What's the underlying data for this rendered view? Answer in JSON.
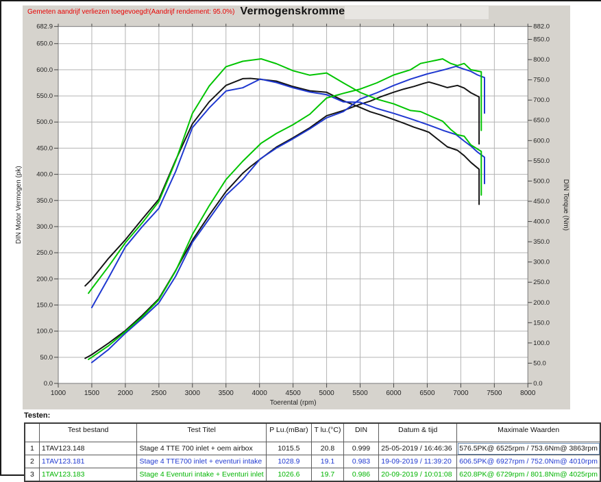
{
  "page": {
    "annotation": "Gemeten aandrijf verliezen toegevoegd!(Aandrijf rendement: 95.0%)",
    "title": "Vermogenskromme",
    "testen_label": "Testen:"
  },
  "chart_data": {
    "type": "line",
    "title": "Vermogenskromme",
    "xlabel": "Toerental (rpm)",
    "ylabel_left": "DIN Motor Vermogen (pk)",
    "ylabel_right": "DIN Torque (Nm)",
    "grid": true,
    "x_range": [
      1000,
      8000
    ],
    "x_ticks": [
      1000,
      1500,
      2000,
      2500,
      3000,
      3500,
      4000,
      4500,
      5000,
      5500,
      6000,
      6500,
      7000,
      7500,
      8000
    ],
    "y_left_range": [
      0,
      682.9
    ],
    "y_left_ticks": [
      682.9,
      650.0,
      600.0,
      550.0,
      500.0,
      450.0,
      400.0,
      350.0,
      300.0,
      250.0,
      200.0,
      150.0,
      100.0,
      50.0,
      0.0
    ],
    "y_right_range": [
      0,
      882.0
    ],
    "y_right_ticks": [
      882.0,
      850.0,
      800.0,
      750.0,
      700.0,
      650.0,
      600.0,
      550.0,
      500.0,
      450.0,
      400.0,
      350.0,
      300.0,
      250.0,
      200.0,
      150.0,
      100.0,
      50.0,
      0.0
    ],
    "series": [
      {
        "name": "1TAV123.148",
        "color": "#141414",
        "power_pk": [
          [
            1400,
            48
          ],
          [
            1500,
            55
          ],
          [
            1750,
            77
          ],
          [
            2000,
            101
          ],
          [
            2250,
            130
          ],
          [
            2500,
            162
          ],
          [
            2750,
            216
          ],
          [
            3000,
            274
          ],
          [
            3250,
            322
          ],
          [
            3500,
            367
          ],
          [
            3750,
            402
          ],
          [
            3863,
            414.5
          ],
          [
            4000,
            428
          ],
          [
            4250,
            452
          ],
          [
            4500,
            470
          ],
          [
            4750,
            489
          ],
          [
            5000,
            512
          ],
          [
            5250,
            522
          ],
          [
            5500,
            534
          ],
          [
            5650,
            540
          ],
          [
            5800,
            548
          ],
          [
            6000,
            557
          ],
          [
            6150,
            563
          ],
          [
            6300,
            568
          ],
          [
            6450,
            574
          ],
          [
            6525,
            576.5
          ],
          [
            6650,
            572
          ],
          [
            6800,
            566
          ],
          [
            6950,
            570
          ],
          [
            7050,
            565
          ],
          [
            7150,
            556
          ],
          [
            7273,
            548
          ],
          [
            7273,
            458
          ]
        ],
        "torque_nm": [
          [
            1400,
            240.8
          ],
          [
            1500,
            257.5
          ],
          [
            1750,
            309.0
          ],
          [
            2000,
            354.7
          ],
          [
            2250,
            405.8
          ],
          [
            2500,
            455.1
          ],
          [
            2750,
            551.6
          ],
          [
            3000,
            641.4
          ],
          [
            3250,
            695.8
          ],
          [
            3500,
            736.4
          ],
          [
            3750,
            752.9
          ],
          [
            3863,
            753.6
          ],
          [
            4000,
            751.5
          ],
          [
            4250,
            746.9
          ],
          [
            4500,
            733.5
          ],
          [
            4750,
            723.0
          ],
          [
            5000,
            719.2
          ],
          [
            5250,
            698.3
          ],
          [
            5500,
            681.9
          ],
          [
            5650,
            671.2
          ],
          [
            5800,
            663.6
          ],
          [
            6000,
            651.9
          ],
          [
            6150,
            642.9
          ],
          [
            6300,
            633.2
          ],
          [
            6450,
            625.0
          ],
          [
            6525,
            620.5
          ],
          [
            6650,
            604.1
          ],
          [
            6800,
            584.5
          ],
          [
            6950,
            576.0
          ],
          [
            7050,
            562.8
          ],
          [
            7150,
            546.1
          ],
          [
            7273,
            529.2
          ],
          [
            7273,
            442.3
          ]
        ]
      },
      {
        "name": "1TAV123.181",
        "color": "#1f38d0",
        "power_pk": [
          [
            1500,
            40
          ],
          [
            1750,
            65
          ],
          [
            2000,
            96
          ],
          [
            2250,
            124
          ],
          [
            2500,
            154
          ],
          [
            2750,
            205
          ],
          [
            3000,
            270
          ],
          [
            3250,
            315
          ],
          [
            3500,
            360
          ],
          [
            3750,
            390
          ],
          [
            4010,
            429.4
          ],
          [
            4250,
            450
          ],
          [
            4500,
            468
          ],
          [
            4750,
            487
          ],
          [
            5000,
            508
          ],
          [
            5250,
            520
          ],
          [
            5500,
            544
          ],
          [
            5750,
            556
          ],
          [
            6000,
            570
          ],
          [
            6250,
            582
          ],
          [
            6500,
            592
          ],
          [
            6750,
            600
          ],
          [
            6927,
            606.5
          ],
          [
            7050,
            601
          ],
          [
            7150,
            597
          ],
          [
            7250,
            590
          ],
          [
            7353,
            585
          ],
          [
            7353,
            517
          ]
        ],
        "torque_nm": [
          [
            1500,
            187.3
          ],
          [
            1750,
            260.9
          ],
          [
            2000,
            337.1
          ],
          [
            2250,
            387.0
          ],
          [
            2500,
            432.6
          ],
          [
            2750,
            523.5
          ],
          [
            3000,
            632.1
          ],
          [
            3250,
            680.7
          ],
          [
            3500,
            722.4
          ],
          [
            3750,
            730.4
          ],
          [
            4010,
            752.0
          ],
          [
            4250,
            743.5
          ],
          [
            4500,
            730.4
          ],
          [
            4750,
            720.0
          ],
          [
            5000,
            713.5
          ],
          [
            5250,
            695.6
          ],
          [
            5500,
            694.6
          ],
          [
            5750,
            679.2
          ],
          [
            6000,
            667.2
          ],
          [
            6250,
            654.0
          ],
          [
            6500,
            639.7
          ],
          [
            6750,
            624.3
          ],
          [
            6927,
            614.9
          ],
          [
            7050,
            598.8
          ],
          [
            7150,
            586.4
          ],
          [
            7250,
            571.5
          ],
          [
            7353,
            558.7
          ],
          [
            7353,
            493.8
          ]
        ]
      },
      {
        "name": "1TAV123.183",
        "color": "#00c400",
        "power_pk": [
          [
            1450,
            46
          ],
          [
            1500,
            50
          ],
          [
            1750,
            72
          ],
          [
            2000,
            99
          ],
          [
            2250,
            127
          ],
          [
            2500,
            160
          ],
          [
            2750,
            215
          ],
          [
            3000,
            285
          ],
          [
            3250,
            340
          ],
          [
            3500,
            390
          ],
          [
            3750,
            425
          ],
          [
            4025,
            459.6
          ],
          [
            4250,
            478
          ],
          [
            4500,
            495
          ],
          [
            4750,
            515
          ],
          [
            5000,
            546
          ],
          [
            5250,
            555
          ],
          [
            5500,
            563
          ],
          [
            5750,
            575
          ],
          [
            6000,
            590
          ],
          [
            6250,
            600
          ],
          [
            6400,
            612
          ],
          [
            6550,
            616
          ],
          [
            6729,
            620.8
          ],
          [
            6850,
            612
          ],
          [
            6950,
            608
          ],
          [
            7050,
            612
          ],
          [
            7150,
            600
          ],
          [
            7305,
            596
          ],
          [
            7305,
            484
          ]
        ],
        "torque_nm": [
          [
            1450,
            222.8
          ],
          [
            1500,
            234.1
          ],
          [
            1750,
            289.0
          ],
          [
            2000,
            347.6
          ],
          [
            2250,
            396.4
          ],
          [
            2500,
            449.5
          ],
          [
            2750,
            549.1
          ],
          [
            3000,
            667.2
          ],
          [
            3250,
            734.7
          ],
          [
            3500,
            782.6
          ],
          [
            3750,
            795.9
          ],
          [
            4025,
            801.8
          ],
          [
            4250,
            789.9
          ],
          [
            4500,
            772.5
          ],
          [
            4750,
            761.5
          ],
          [
            5000,
            766.9
          ],
          [
            5250,
            742.4
          ],
          [
            5500,
            718.9
          ],
          [
            5750,
            702.3
          ],
          [
            6000,
            690.6
          ],
          [
            6250,
            674.2
          ],
          [
            6400,
            671.6
          ],
          [
            6550,
            660.5
          ],
          [
            6729,
            647.9
          ],
          [
            6850,
            627.4
          ],
          [
            6950,
            614.3
          ],
          [
            7050,
            610.9
          ],
          [
            7150,
            589.4
          ],
          [
            7305,
            573.2
          ],
          [
            7305,
            465.4
          ]
        ]
      }
    ]
  },
  "table": {
    "headers": [
      "",
      "Test bestand",
      "Test Titel",
      "P Lu.(mBar)",
      "T lu.(°C)",
      "DIN",
      "Datum & tijd",
      "Maximale Waarden"
    ],
    "rows": [
      {
        "num": "1",
        "file": "1TAV123.148",
        "title": "Stage 4 TTE 700  inlet + oem airbox",
        "p_lu": "1015.5",
        "t_lu": "20.8",
        "din": "0.999",
        "datetime": "25-05-2019 / 16:46:36",
        "max": "576.5PK@ 6525rpm / 753.6Nm@ 3863rpm",
        "color": "#141414",
        "max_selected": true
      },
      {
        "num": "2",
        "file": "1TAV123.181",
        "title": "Stage 4 TTE700 inlet + eventuri intake",
        "p_lu": "1028.9",
        "t_lu": "19.1",
        "din": "0.983",
        "datetime": "19-09-2019 / 11:39:20",
        "max": "606.5PK@ 6927rpm / 752.0Nm@ 4010rpm",
        "color": "#1f38d0",
        "max_selected": false
      },
      {
        "num": "3",
        "file": "1TAV123.183",
        "title": "Stage 4 Eventuri intake + Eventuri inlet",
        "p_lu": "1026.6",
        "t_lu": "19.7",
        "din": "0.986",
        "datetime": "20-09-2019 / 10:01:08",
        "max": "620.8PK@ 6729rpm / 801.8Nm@ 4025rpm",
        "color": "#00b400",
        "max_selected": false
      }
    ]
  }
}
